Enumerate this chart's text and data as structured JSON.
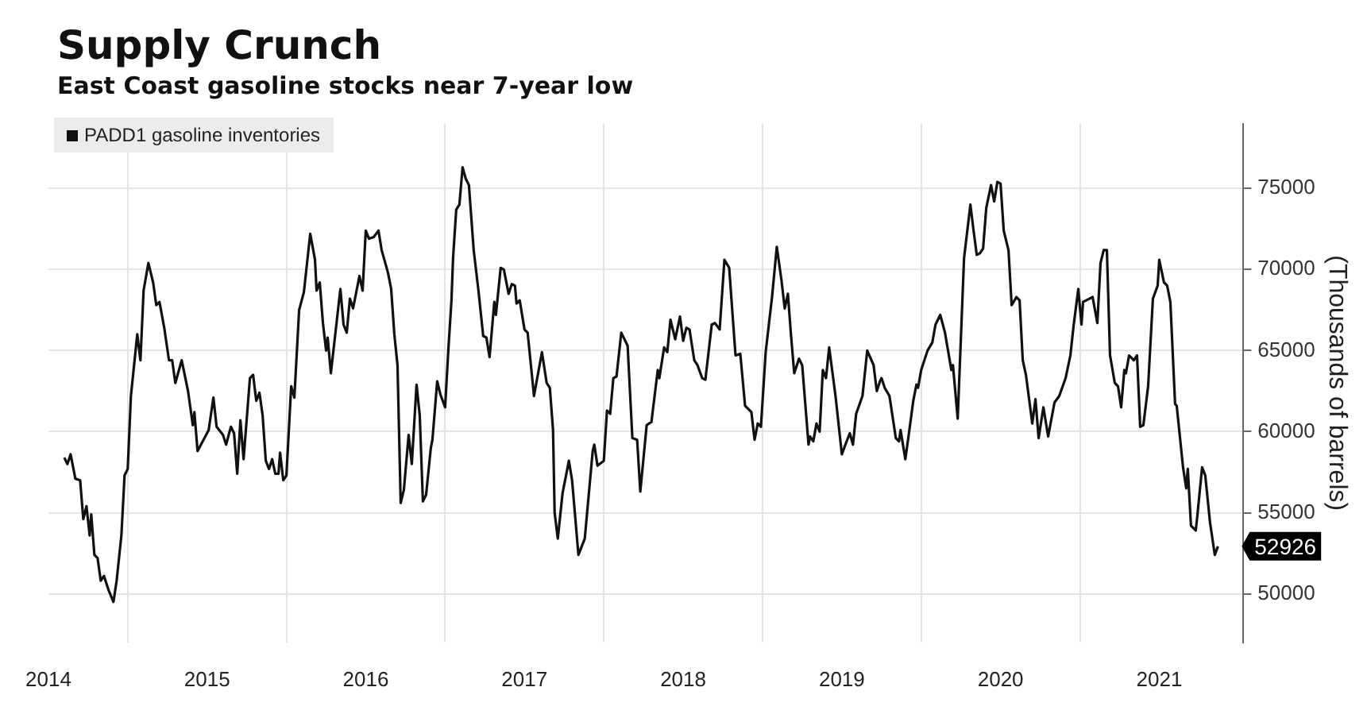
{
  "chart_data": {
    "type": "line",
    "title": "Supply Crunch",
    "subtitle": "East Coast gasoline stocks near 7-year low",
    "y2label": "(Thousands of barrels)",
    "x": [
      2014.6,
      2014.62,
      2014.64,
      2014.67,
      2014.7,
      2014.72,
      2014.74,
      2014.76,
      2014.77,
      2014.79,
      2014.81,
      2014.83,
      2014.85,
      2014.88,
      2014.91,
      2014.93,
      2014.96,
      2014.98,
      2015.0,
      2015.02,
      2015.04,
      2015.06,
      2015.08,
      2015.1,
      2015.13,
      2015.16,
      2015.18,
      2015.2,
      2015.23,
      2015.26,
      2015.28,
      2015.3,
      2015.34,
      2015.38,
      2015.41,
      2015.42,
      2015.44,
      2015.51,
      2015.54,
      2015.56,
      2015.6,
      2015.62,
      2015.65,
      2015.67,
      2015.69,
      2015.71,
      2015.73,
      2015.77,
      2015.79,
      2015.81,
      2015.83,
      2015.85,
      2015.87,
      2015.89,
      2015.91,
      2015.93,
      2015.95,
      2015.96,
      2015.98,
      2016.0,
      2016.03,
      2016.05,
      2016.08,
      2016.11,
      2016.15,
      2016.18,
      2016.19,
      2016.21,
      2016.23,
      2016.25,
      2016.26,
      2016.28,
      2016.31,
      2016.34,
      2016.36,
      2016.38,
      2016.4,
      2016.42,
      2016.46,
      2016.48,
      2016.5,
      2016.52,
      2016.55,
      2016.58,
      2016.6,
      2016.64,
      2016.66,
      2016.68,
      2016.7,
      2016.72,
      2016.74,
      2016.77,
      2016.79,
      2016.82,
      2016.84,
      2016.86,
      2016.88,
      2016.91,
      2016.92,
      2016.95,
      2016.97,
      2017.0,
      2017.02,
      2017.04,
      2017.05,
      2017.07,
      2017.09,
      2017.11,
      2017.13,
      2017.15,
      2017.18,
      2017.21,
      2017.24,
      2017.26,
      2017.28,
      2017.31,
      2017.32,
      2017.35,
      2017.37,
      2017.4,
      2017.42,
      2017.44,
      2017.45,
      2017.47,
      2017.5,
      2017.52,
      2017.56,
      2017.61,
      2017.64,
      2017.66,
      2017.68,
      2017.69,
      2017.71,
      2017.74,
      2017.78,
      2017.8,
      2017.84,
      2017.88,
      2017.93,
      2017.94,
      2017.96,
      2018.0,
      2018.02,
      2018.04,
      2018.06,
      2018.08,
      2018.11,
      2018.15,
      2018.18,
      2018.21,
      2018.23,
      2018.27,
      2018.3,
      2018.34,
      2018.35,
      2018.38,
      2018.4,
      2018.42,
      2018.45,
      2018.48,
      2018.5,
      2018.52,
      2018.54,
      2018.57,
      2018.59,
      2018.62,
      2018.64,
      2018.68,
      2018.7,
      2018.73,
      2018.76,
      2018.79,
      2018.83,
      2018.86,
      2018.89,
      2018.93,
      2018.95,
      2018.97,
      2018.99,
      2019.02,
      2019.06,
      2019.09,
      2019.12,
      2019.14,
      2019.16,
      2019.18,
      2019.2,
      2019.23,
      2019.25,
      2019.29,
      2019.3,
      2019.32,
      2019.34,
      2019.36,
      2019.38,
      2019.4,
      2019.42,
      2019.46,
      2019.5,
      2019.53,
      2019.55,
      2019.57,
      2019.59,
      2019.63,
      2019.66,
      2019.7,
      2019.72,
      2019.74,
      2019.75,
      2019.77,
      2019.8,
      2019.84,
      2019.86,
      2019.87,
      2019.9,
      2019.92,
      2019.95,
      2019.97,
      2019.98,
      2020.0,
      2020.04,
      2020.07,
      2020.09,
      2020.12,
      2020.15,
      2020.19,
      2020.2,
      2020.23,
      2020.27,
      2020.31,
      2020.33,
      2020.35,
      2020.37,
      2020.39,
      2020.41,
      2020.44,
      2020.46,
      2020.48,
      2020.5,
      2020.52,
      2020.55,
      2020.57,
      2020.6,
      2020.62,
      2020.64,
      2020.66,
      2020.7,
      2020.72,
      2020.74,
      2020.77,
      2020.8,
      2020.84,
      2020.87,
      2020.91,
      2020.94,
      2020.96,
      2020.99,
      2021.01,
      2021.02,
      2021.06,
      2021.08,
      2021.11,
      2021.13,
      2021.15,
      2021.17,
      2021.19,
      2021.22,
      2021.24,
      2021.26,
      2021.28,
      2021.29,
      2021.31,
      2021.34,
      2021.36,
      2021.38,
      2021.4,
      2021.43,
      2021.46,
      2021.49,
      2021.5,
      2021.53,
      2021.55,
      2021.57,
      2021.6,
      2021.61,
      2021.65,
      2021.67,
      2021.68,
      2021.7,
      2021.73,
      2021.74,
      2021.77,
      2021.79,
      2021.82,
      2021.85,
      2021.87
    ],
    "series": [
      {
        "name": "PADD1 gasoline inventories",
        "color": "#111111",
        "axis": "y2",
        "values": [
          58400,
          58000,
          58600,
          57100,
          57000,
          54600,
          55400,
          53600,
          54900,
          52400,
          52200,
          50800,
          51100,
          50200,
          49500,
          50800,
          53600,
          57300,
          57700,
          62200,
          64100,
          66000,
          64400,
          68700,
          70400,
          69200,
          67800,
          68000,
          66400,
          64400,
          64400,
          63000,
          64400,
          62500,
          60400,
          61200,
          58800,
          60100,
          62100,
          60300,
          59800,
          59200,
          60300,
          59900,
          57400,
          60700,
          58300,
          63300,
          63500,
          61900,
          62400,
          61000,
          58200,
          57700,
          58300,
          57400,
          57400,
          58700,
          57000,
          57300,
          62800,
          62100,
          67500,
          68600,
          72200,
          70600,
          68700,
          69200,
          66700,
          65000,
          65800,
          63600,
          66200,
          68800,
          66600,
          66100,
          68200,
          67600,
          69600,
          68700,
          72400,
          71900,
          72000,
          72400,
          71200,
          69800,
          68800,
          66000,
          64100,
          55600,
          56400,
          59800,
          58000,
          62900,
          61000,
          55700,
          56100,
          59000,
          59500,
          63100,
          62300,
          61500,
          65000,
          68100,
          70700,
          73700,
          74000,
          76300,
          75600,
          75200,
          71200,
          68700,
          65900,
          65800,
          64600,
          68000,
          67200,
          70100,
          70000,
          68500,
          69100,
          69000,
          67900,
          68100,
          66300,
          66100,
          62200,
          64900,
          63000,
          62700,
          60100,
          55000,
          53400,
          56200,
          58200,
          57000,
          52400,
          53400,
          58800,
          59200,
          57900,
          58200,
          61300,
          61100,
          63300,
          63400,
          66100,
          65300,
          59600,
          59500,
          56300,
          60400,
          60600,
          63800,
          63300,
          65200,
          64900,
          66900,
          65700,
          67100,
          65600,
          66400,
          66300,
          64400,
          64100,
          63300,
          63200,
          66600,
          66700,
          66300,
          70600,
          70100,
          64700,
          64800,
          61600,
          61200,
          59500,
          60500,
          60300,
          64900,
          68300,
          71400,
          69300,
          67600,
          68500,
          65900,
          63600,
          64500,
          64100,
          59200,
          59700,
          59400,
          60500,
          60000,
          63800,
          63300,
          65200,
          62200,
          58600,
          59400,
          59900,
          59200,
          61100,
          62200,
          65000,
          64100,
          62500,
          63100,
          63300,
          62700,
          62200,
          59600,
          59400,
          60100,
          58300,
          59700,
          61900,
          62900,
          62700,
          63800,
          65000,
          65500,
          66600,
          67200,
          66100,
          63800,
          64100,
          60800,
          70700,
          74000,
          72400,
          70900,
          71000,
          71300,
          73800,
          75200,
          74200,
          75400,
          75300,
          72400,
          71200,
          67800,
          68300,
          68100,
          64400,
          63500,
          60500,
          62000,
          59600,
          61500,
          59700,
          61800,
          62200,
          63300,
          64700,
          66500,
          68800,
          66600,
          68000,
          68200,
          68300,
          66700,
          70400,
          71200,
          71200,
          64700,
          63000,
          62800,
          61500,
          63800,
          63600,
          64700,
          64400,
          64700,
          60300,
          60400,
          62800,
          68200,
          69000,
          70600,
          69200,
          69000,
          68000,
          61700,
          61600,
          57800,
          56500,
          57700,
          54200,
          53900,
          54800,
          57800,
          57300,
          54400,
          52400,
          52926
        ]
      }
    ],
    "xlim": [
      2014.5,
      2022.03
    ],
    "xticks": [
      {
        "value": 2014.5,
        "label": "2014"
      },
      {
        "value": 2015,
        "label": null
      },
      {
        "value": 2015.5,
        "label": "2015"
      },
      {
        "value": 2016,
        "label": null
      },
      {
        "value": 2016.5,
        "label": "2016"
      },
      {
        "value": 2017,
        "label": null
      },
      {
        "value": 2017.5,
        "label": "2017"
      },
      {
        "value": 2018,
        "label": null
      },
      {
        "value": 2018.5,
        "label": "2018"
      },
      {
        "value": 2019,
        "label": null
      },
      {
        "value": 2019.5,
        "label": "2019"
      },
      {
        "value": 2020,
        "label": null
      },
      {
        "value": 2020.5,
        "label": "2020"
      },
      {
        "value": 2021,
        "label": null
      },
      {
        "value": 2021.5,
        "label": "2021"
      }
    ],
    "y2lim": [
      47000,
      79000
    ],
    "y2ticks": [
      50000,
      55000,
      60000,
      65000,
      70000,
      75000
    ],
    "annotations": [
      "52926"
    ],
    "grid": true,
    "legend": "top left",
    "marker": "none",
    "line_style": "solid"
  }
}
